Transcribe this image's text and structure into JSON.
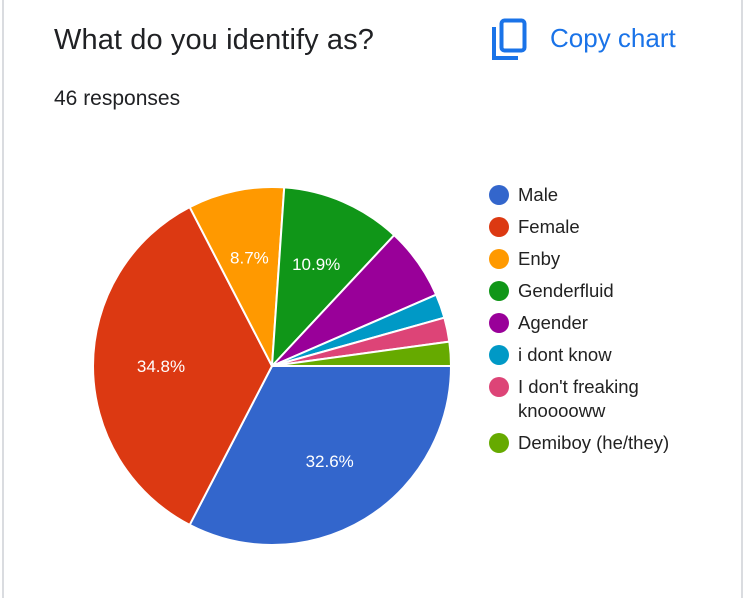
{
  "header": {
    "title": "What do you identify as?",
    "responses": "46 responses",
    "copy_label": "Copy chart",
    "copy_icon": "copy-icon"
  },
  "colors": {
    "accent": "#1a73e8",
    "text": "#202124",
    "border": "#dadce0"
  },
  "chart_data": {
    "type": "pie",
    "title": "What do you identify as?",
    "subtitle": "46 responses",
    "total": 46,
    "categories": [
      "Male",
      "Female",
      "Enby",
      "Genderfluid",
      "Agender",
      "i dont know",
      "I don't freaking knooooww",
      "Demiboy (he/they)"
    ],
    "values": [
      15,
      16,
      4,
      5,
      3,
      1,
      1,
      1
    ],
    "percentages": [
      32.6,
      34.8,
      8.7,
      10.9,
      6.5,
      2.2,
      2.2,
      2.2
    ],
    "data_labels": [
      "32.6%",
      "34.8%",
      "8.7%",
      "10.9%",
      "",
      "",
      "",
      ""
    ],
    "colors": [
      "#3366cc",
      "#dc3912",
      "#ff9900",
      "#109618",
      "#990099",
      "#0099c6",
      "#dd4477",
      "#66aa00"
    ],
    "legend_position": "right",
    "start_angle_deg": 0,
    "direction": "clockwise"
  },
  "legend": {
    "items": [
      {
        "label": "Male",
        "color": "#3366cc"
      },
      {
        "label": "Female",
        "color": "#dc3912"
      },
      {
        "label": "Enby",
        "color": "#ff9900"
      },
      {
        "label": "Genderfluid",
        "color": "#109618"
      },
      {
        "label": "Agender",
        "color": "#990099"
      },
      {
        "label": "i dont know",
        "color": "#0099c6"
      },
      {
        "label": "I don't freaking knooooww",
        "color": "#dd4477"
      },
      {
        "label": "Demiboy (he/they)",
        "color": "#66aa00"
      }
    ]
  }
}
